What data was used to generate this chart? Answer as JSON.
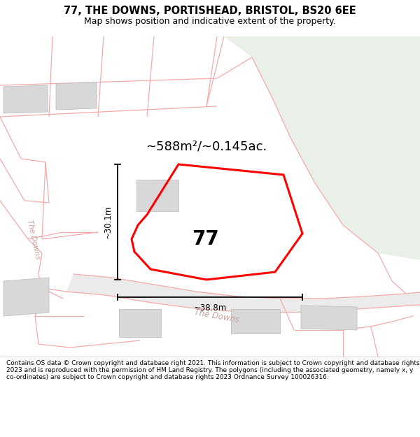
{
  "title_line1": "77, THE DOWNS, PORTISHEAD, BRISTOL, BS20 6EE",
  "title_line2": "Map shows position and indicative extent of the property.",
  "footer_text": "Contains OS data © Crown copyright and database right 2021. This information is subject to Crown copyright and database rights 2023 and is reproduced with the permission of HM Land Registry. The polygons (including the associated geometry, namely x, y co-ordinates) are subject to Crown copyright and database rights 2023 Ordnance Survey 100026316.",
  "area_label": "~588m²/~0.145ac.",
  "number_label": "77",
  "width_label": "~38.8m",
  "height_label": "~30.1m",
  "map_bg": "#ffffff",
  "green_color": "#e8f0e8",
  "plot_color": "#ff0000",
  "plot_lw": 2.2,
  "pink_line_color": "#f4aaaa",
  "pink_line_lw": 0.9,
  "building_fill": "#d8d8d8",
  "building_edge": "#c0c0c0",
  "street_label": "The Downs",
  "street_label_left": "The Downs"
}
